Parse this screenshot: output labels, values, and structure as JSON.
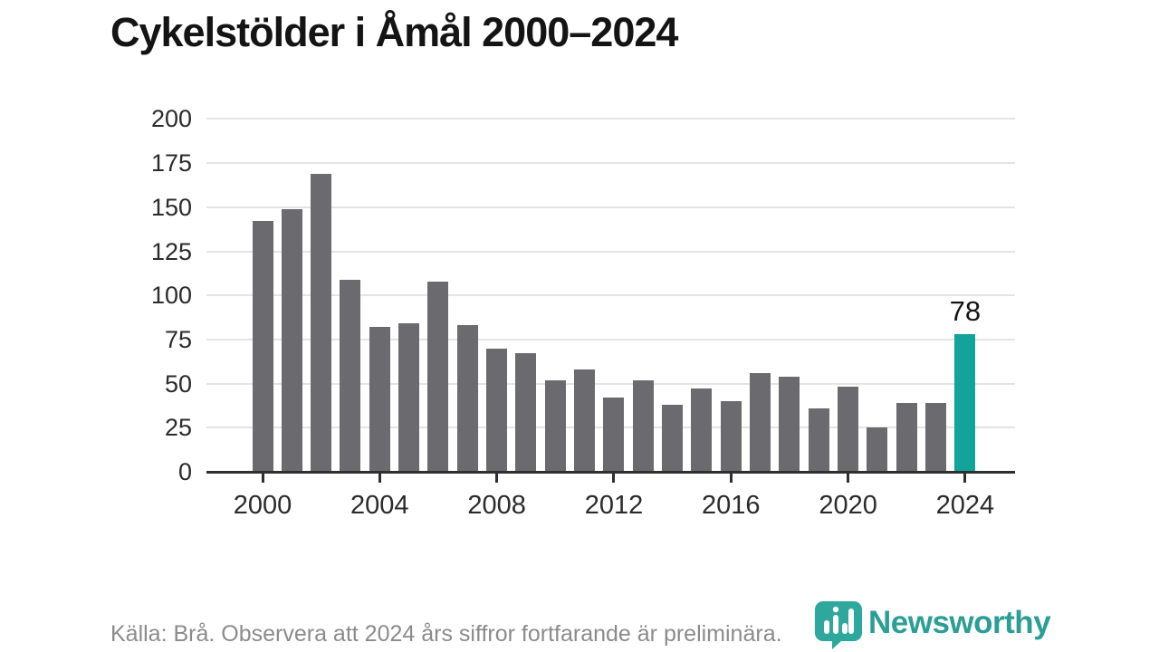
{
  "title": "Cykelstölder i Åmål 2000–2024",
  "annotation": {
    "label": "78",
    "year": 2024
  },
  "source_note": "Källa: Brå. Observera att 2024 års siffror fortfarande är preliminära.",
  "logo": {
    "brand": "Newsworthy",
    "icon": "newsworthy-bubble-barchart-icon"
  },
  "colors": {
    "bar": "#6b6a6f",
    "highlight": "#12a39b",
    "axis": "#2f2f2f",
    "grid": "#e4e4e4",
    "title_text": "#141414",
    "tick_text": "#2b2b2b",
    "source_text": "#8b8b8b",
    "logo_teal": "#2b9e95"
  },
  "chart_data": {
    "type": "bar",
    "title": "Cykelstölder i Åmål 2000–2024",
    "xlabel": "",
    "ylabel": "",
    "x": [
      2000,
      2001,
      2002,
      2003,
      2004,
      2005,
      2006,
      2007,
      2008,
      2009,
      2010,
      2011,
      2012,
      2013,
      2014,
      2015,
      2016,
      2017,
      2018,
      2019,
      2020,
      2021,
      2022,
      2023,
      2024
    ],
    "values": [
      142,
      149,
      169,
      109,
      82,
      84,
      108,
      83,
      70,
      67,
      52,
      58,
      42,
      52,
      38,
      47,
      40,
      56,
      54,
      36,
      48,
      25,
      39,
      39,
      78
    ],
    "highlight_x": 2024,
    "highlight_value_label": "78",
    "yticks": [
      0,
      25,
      50,
      75,
      100,
      125,
      150,
      175,
      200
    ],
    "xticks": [
      2000,
      2004,
      2008,
      2012,
      2016,
      2020,
      2024
    ],
    "ylim": [
      0,
      200
    ],
    "grid": "horizontal",
    "legend_position": "none"
  }
}
